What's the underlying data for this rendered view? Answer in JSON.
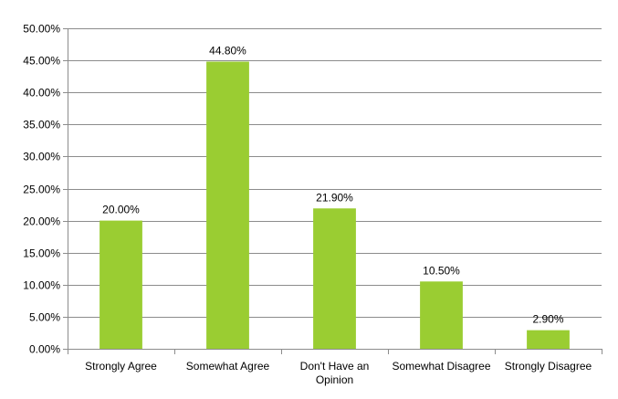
{
  "chart_data": {
    "type": "bar",
    "title": "",
    "xlabel": "",
    "ylabel": "",
    "categories": [
      "Strongly Agree",
      "Somewhat Agree",
      "Don't Have an Opinion",
      "Somewhat Disagree",
      "Strongly Disagree"
    ],
    "category_lines": [
      [
        "Strongly Agree"
      ],
      [
        "Somewhat Agree"
      ],
      [
        "Don't Have an",
        "Opinion"
      ],
      [
        "Somewhat Disagree"
      ],
      [
        "Strongly Disagree"
      ]
    ],
    "values": [
      20.0,
      44.8,
      21.9,
      10.5,
      2.9
    ],
    "data_labels": [
      "20.00%",
      "44.80%",
      "21.90%",
      "10.50%",
      "2.90%"
    ],
    "ylim": [
      0,
      50
    ],
    "yticks": [
      0,
      5,
      10,
      15,
      20,
      25,
      30,
      35,
      40,
      45,
      50
    ],
    "ytick_labels": [
      "0.00%",
      "5.00%",
      "10.00%",
      "15.00%",
      "20.00%",
      "25.00%",
      "30.00%",
      "35.00%",
      "40.00%",
      "45.00%",
      "50.00%"
    ],
    "grid": true,
    "legend": "none",
    "bar_color": "#9acd32"
  }
}
